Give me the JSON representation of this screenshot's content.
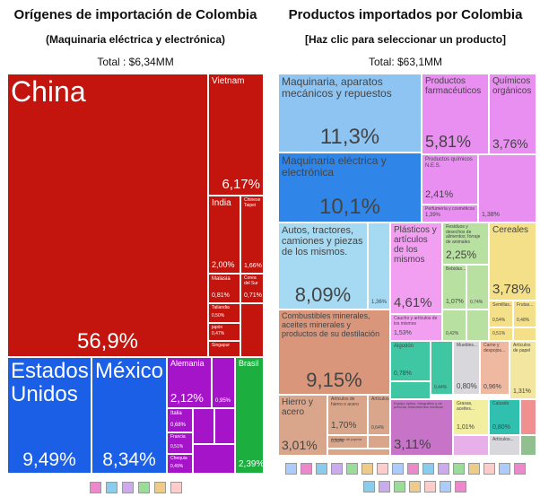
{
  "left": {
    "title": "Orígenes de importación de Colombia",
    "subtitle": "(Maquinaria eléctrica y electrónica)",
    "total": "Total : $6,34MM",
    "tiles": [
      {
        "label": "China",
        "value": "56,9%"
      },
      {
        "label": "Vietnam",
        "value": "6,17%"
      },
      {
        "label": "India",
        "value": "2,00%"
      },
      {
        "label": "Chinese Taipei",
        "value": "1,66%"
      },
      {
        "label": "Malasia",
        "value": "0,81%"
      },
      {
        "label": "Corea del Sur",
        "value": "0,71%"
      },
      {
        "label": "Tailandia",
        "value": "0,50%"
      },
      {
        "label": "japón",
        "value": "0,47%"
      },
      {
        "label": "Singapur"
      },
      {
        "label": "Estados Unidos",
        "value": "9,49%"
      },
      {
        "label": "México",
        "value": "8,34%"
      },
      {
        "label": "Alemania",
        "value": "2,12%"
      },
      {
        "value": "0,95%"
      },
      {
        "label": "Italia",
        "value": "0,68%"
      },
      {
        "label": "Francia",
        "value": "0,51%"
      },
      {
        "label": "Chequia",
        "value": "0,49%"
      },
      {
        "label": "Brasil",
        "value": "2,39%"
      }
    ]
  },
  "right": {
    "title": "Productos importados por Colombia",
    "subtitle": "[Haz clic para seleccionar un producto]",
    "total": "Total: $63,1MM",
    "tiles": [
      {
        "label": "Maquinaria, aparatos mecánicos y repuestos",
        "value": "11,3%"
      },
      {
        "label": "Maquinaria eléctrica y electrónica",
        "value": "10,1%"
      },
      {
        "label": "Productos farmacéuticos",
        "value": "5,81%"
      },
      {
        "label": "Químicos orgánicos",
        "value": "3,76%"
      },
      {
        "label": "Productos químicos N.E.S.",
        "value": "2,41%"
      },
      {
        "label": "Perfumería y cosméticos",
        "value": "1,39%"
      },
      {
        "value": "1,38%"
      },
      {
        "label": "Autos, tractores, camiones y piezas de los mismos.",
        "value": "8,09%"
      },
      {
        "value": "1,36%"
      },
      {
        "label": "Plásticos y artículos de los mismos",
        "value": "4,61%"
      },
      {
        "label": "Caucho y artículos de los mismos",
        "value": "1,53%"
      },
      {
        "label": "Residuos y desechos de alimentos; forraje de animales",
        "value": "2,25%"
      },
      {
        "label": "Bebidas...",
        "value": "1,07%"
      },
      {
        "value": "0,74%"
      },
      {
        "value": "0,42%"
      },
      {
        "label": "Cereales",
        "value": "3,78%"
      },
      {
        "label": "Semillas...",
        "value": "0,54%"
      },
      {
        "label": "Frutas...",
        "value": "0,48%"
      },
      {
        "value": "0,51%"
      },
      {
        "label": "Combustibles minerales, aceites minerales y productos de su destilación",
        "value": "9,15%"
      },
      {
        "label": "Algodón",
        "value": "0,78%"
      },
      {
        "value": "0,44%"
      },
      {
        "label": "Muebles...",
        "value": "0,80%"
      },
      {
        "label": "Carne y despojos...",
        "value": "0,96%"
      },
      {
        "label": "Artículos de papel",
        "value": "1,31%"
      },
      {
        "label": "Hierro y acero",
        "value": "3,01%"
      },
      {
        "label": "Artículos de hierro o acero",
        "value": "1,70%"
      },
      {
        "label": "Artículos...",
        "value": "0,64%"
      },
      {
        "label": "Artículos de joyería",
        "value": "0,93%"
      },
      {
        "label": "Equipo óptico, fotográfico y de película, instrumentos médicos",
        "value": "3,11%"
      },
      {
        "label": "Grasas, aceites...",
        "value": "1,01%"
      },
      {
        "label": "Calzado",
        "value": "0,80%"
      },
      {
        "label": "Artículos..."
      }
    ]
  }
}
